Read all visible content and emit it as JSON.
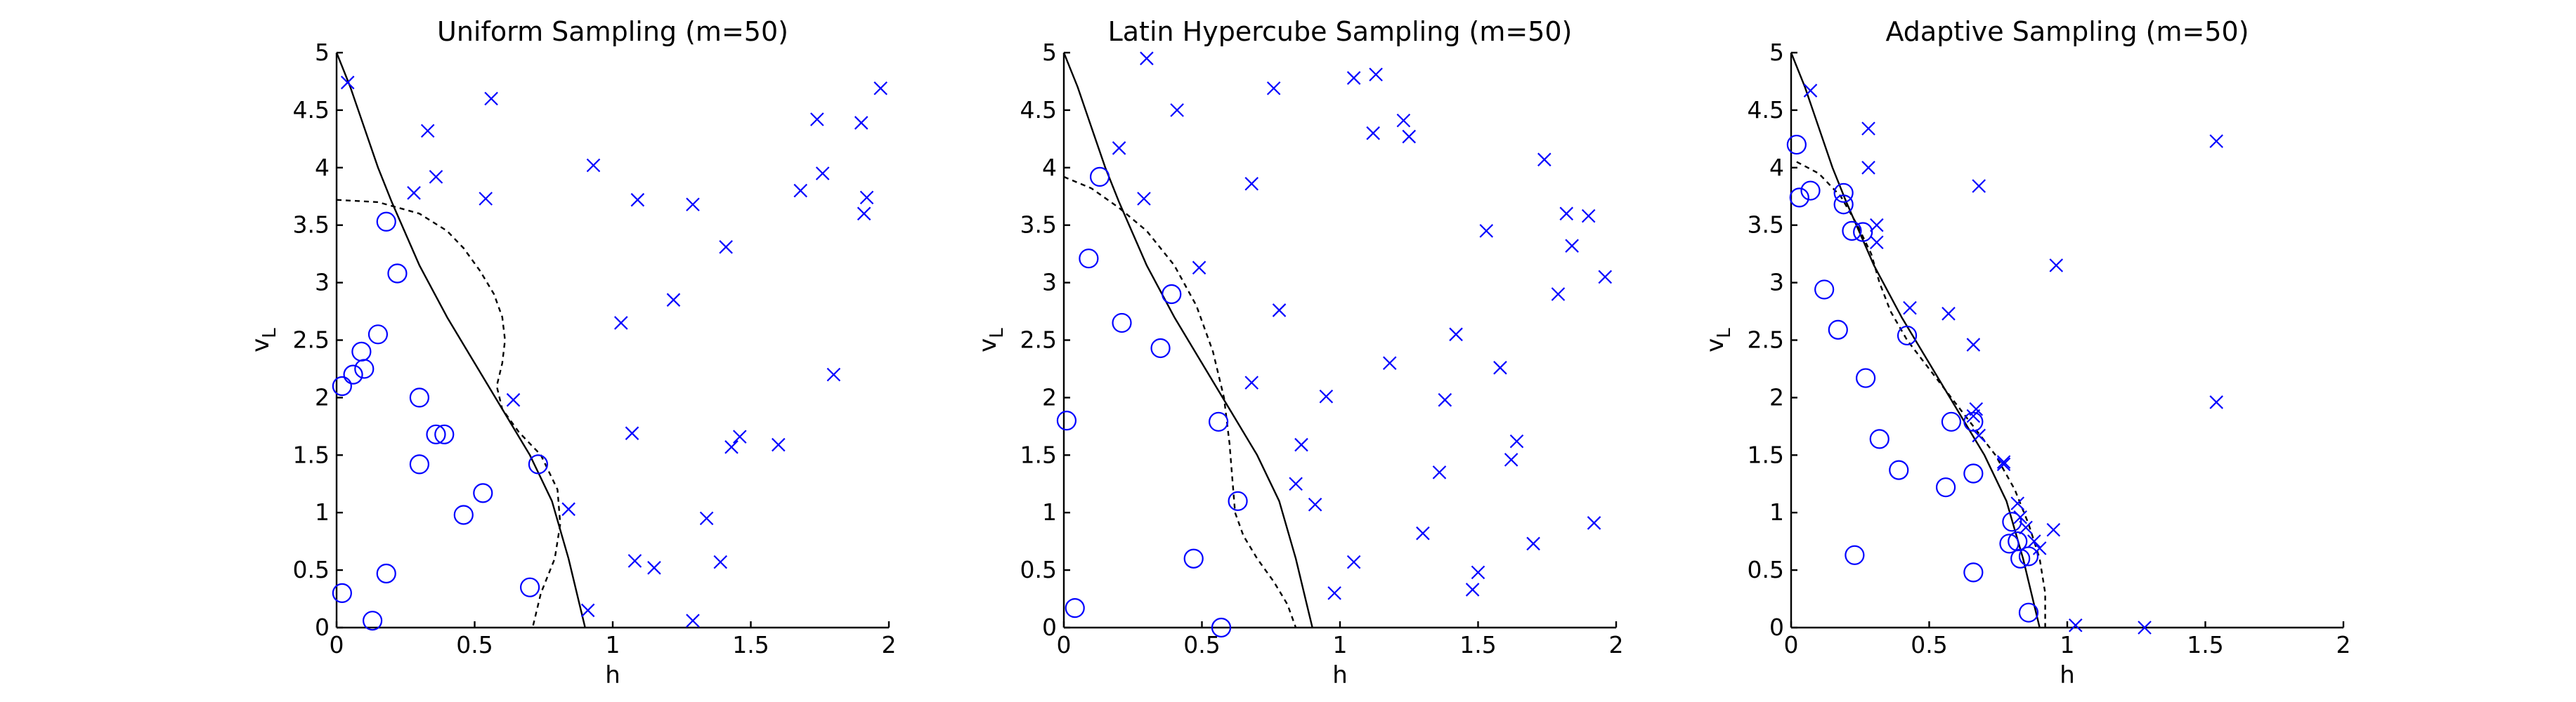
{
  "chart_data": [
    {
      "type": "scatter",
      "title": "Uniform Sampling (m=50)",
      "xlabel": "h",
      "ylabel": "v",
      "ylabel_sub": "L",
      "xlim": [
        0,
        2
      ],
      "ylim": [
        0,
        5
      ],
      "xticks": [
        "0",
        "0.5",
        "1",
        "1.5",
        "2"
      ],
      "yticks": [
        "0",
        "0.5",
        "1",
        "1.5",
        "2",
        "2.5",
        "3",
        "3.5",
        "4",
        "4.5",
        "5"
      ],
      "grid": false,
      "marker_color": "#0000ff",
      "circles": [
        [
          0.18,
          3.53
        ],
        [
          0.22,
          3.08
        ],
        [
          0.15,
          2.55
        ],
        [
          0.09,
          2.4
        ],
        [
          0.1,
          2.25
        ],
        [
          0.06,
          2.2
        ],
        [
          0.02,
          2.1
        ],
        [
          0.3,
          2.0
        ],
        [
          0.36,
          1.68
        ],
        [
          0.39,
          1.68
        ],
        [
          0.3,
          1.42
        ],
        [
          0.73,
          1.42
        ],
        [
          0.53,
          1.17
        ],
        [
          0.46,
          0.98
        ],
        [
          0.02,
          0.3
        ],
        [
          0.18,
          0.47
        ],
        [
          0.7,
          0.35
        ],
        [
          0.13,
          0.06
        ]
      ],
      "crosses": [
        [
          0.04,
          4.74
        ],
        [
          0.56,
          4.6
        ],
        [
          0.33,
          4.32
        ],
        [
          0.36,
          3.92
        ],
        [
          0.28,
          3.78
        ],
        [
          0.54,
          3.73
        ],
        [
          0.93,
          4.02
        ],
        [
          1.09,
          3.72
        ],
        [
          1.29,
          3.68
        ],
        [
          1.41,
          3.31
        ],
        [
          1.74,
          4.42
        ],
        [
          1.76,
          3.95
        ],
        [
          1.97,
          4.69
        ],
        [
          1.9,
          4.39
        ],
        [
          1.68,
          3.8
        ],
        [
          1.92,
          3.74
        ],
        [
          1.91,
          3.6
        ],
        [
          1.03,
          2.65
        ],
        [
          1.22,
          2.85
        ],
        [
          1.8,
          2.2
        ],
        [
          0.64,
          1.98
        ],
        [
          1.07,
          1.69
        ],
        [
          1.46,
          1.66
        ],
        [
          1.43,
          1.57
        ],
        [
          1.6,
          1.59
        ],
        [
          0.84,
          1.03
        ],
        [
          1.34,
          0.95
        ],
        [
          1.08,
          0.58
        ],
        [
          1.15,
          0.52
        ],
        [
          1.39,
          0.57
        ],
        [
          1.29,
          0.06
        ],
        [
          0.91,
          0.15
        ]
      ],
      "series": [
        {
          "style": "solid",
          "x": [
            0.0,
            0.05,
            0.1,
            0.15,
            0.2,
            0.3,
            0.4,
            0.5,
            0.6,
            0.7,
            0.78,
            0.84,
            0.88,
            0.9
          ],
          "y": [
            5.0,
            4.7,
            4.35,
            4.0,
            3.7,
            3.15,
            2.7,
            2.3,
            1.9,
            1.5,
            1.1,
            0.6,
            0.2,
            0.0
          ]
        },
        {
          "style": "dashed",
          "x": [
            0.0,
            0.15,
            0.3,
            0.4,
            0.46,
            0.52,
            0.57,
            0.6,
            0.61,
            0.6,
            0.58,
            0.6,
            0.66,
            0.74,
            0.8,
            0.81,
            0.79,
            0.74,
            0.71
          ],
          "y": [
            3.72,
            3.7,
            3.6,
            3.45,
            3.3,
            3.1,
            2.9,
            2.7,
            2.5,
            2.3,
            2.1,
            1.9,
            1.7,
            1.5,
            1.2,
            0.9,
            0.6,
            0.3,
            0.0
          ]
        }
      ]
    },
    {
      "type": "scatter",
      "title": "Latin Hypercube Sampling (m=50)",
      "xlabel": "h",
      "ylabel": "v",
      "ylabel_sub": "L",
      "xlim": [
        0,
        2
      ],
      "ylim": [
        0,
        5
      ],
      "xticks": [
        "0",
        "0.5",
        "1",
        "1.5",
        "2"
      ],
      "yticks": [
        "0",
        "0.5",
        "1",
        "1.5",
        "2",
        "2.5",
        "3",
        "3.5",
        "4",
        "4.5",
        "5"
      ],
      "grid": false,
      "marker_color": "#0000ff",
      "circles": [
        [
          0.13,
          3.92
        ],
        [
          0.09,
          3.21
        ],
        [
          0.39,
          2.9
        ],
        [
          0.21,
          2.65
        ],
        [
          0.35,
          2.43
        ],
        [
          0.56,
          1.79
        ],
        [
          0.01,
          1.8
        ],
        [
          0.63,
          1.1
        ],
        [
          0.47,
          0.6
        ],
        [
          0.04,
          0.17
        ],
        [
          0.57,
          0.0
        ]
      ],
      "crosses": [
        [
          0.3,
          4.95
        ],
        [
          0.41,
          4.5
        ],
        [
          0.2,
          4.17
        ],
        [
          0.29,
          3.73
        ],
        [
          0.68,
          3.86
        ],
        [
          0.76,
          4.69
        ],
        [
          1.05,
          4.78
        ],
        [
          1.13,
          4.81
        ],
        [
          1.12,
          4.3
        ],
        [
          1.23,
          4.41
        ],
        [
          1.25,
          4.27
        ],
        [
          1.74,
          4.07
        ],
        [
          1.53,
          3.45
        ],
        [
          1.82,
          3.6
        ],
        [
          1.9,
          3.58
        ],
        [
          1.84,
          3.32
        ],
        [
          1.96,
          3.05
        ],
        [
          1.79,
          2.9
        ],
        [
          0.49,
          3.13
        ],
        [
          0.78,
          2.76
        ],
        [
          0.68,
          2.13
        ],
        [
          0.95,
          2.01
        ],
        [
          1.18,
          2.3
        ],
        [
          1.42,
          2.55
        ],
        [
          1.38,
          1.98
        ],
        [
          1.58,
          2.26
        ],
        [
          0.86,
          1.59
        ],
        [
          0.84,
          1.25
        ],
        [
          0.91,
          1.07
        ],
        [
          1.36,
          1.35
        ],
        [
          1.64,
          1.62
        ],
        [
          1.62,
          1.46
        ],
        [
          1.3,
          0.82
        ],
        [
          1.7,
          0.73
        ],
        [
          1.92,
          0.91
        ],
        [
          1.05,
          0.57
        ],
        [
          0.98,
          0.3
        ],
        [
          1.5,
          0.48
        ],
        [
          1.48,
          0.33
        ]
      ],
      "series": [
        {
          "style": "solid",
          "x": [
            0.0,
            0.05,
            0.1,
            0.15,
            0.2,
            0.3,
            0.4,
            0.5,
            0.6,
            0.7,
            0.78,
            0.84,
            0.88,
            0.9
          ],
          "y": [
            5.0,
            4.7,
            4.35,
            4.0,
            3.7,
            3.15,
            2.7,
            2.3,
            1.9,
            1.5,
            1.1,
            0.6,
            0.2,
            0.0
          ]
        },
        {
          "style": "dashed",
          "x": [
            0.0,
            0.1,
            0.2,
            0.3,
            0.4,
            0.48,
            0.54,
            0.58,
            0.6,
            0.61,
            0.62,
            0.65,
            0.7,
            0.76,
            0.81,
            0.84
          ],
          "y": [
            3.92,
            3.82,
            3.65,
            3.45,
            3.15,
            2.8,
            2.4,
            2.0,
            1.6,
            1.3,
            1.0,
            0.8,
            0.6,
            0.4,
            0.2,
            0.0
          ]
        }
      ]
    },
    {
      "type": "scatter",
      "title": "Adaptive Sampling (m=50)",
      "xlabel": "h",
      "ylabel": "v",
      "ylabel_sub": "L",
      "xlim": [
        0,
        2
      ],
      "ylim": [
        0,
        5
      ],
      "xticks": [
        "0",
        "0.5",
        "1",
        "1.5",
        "2"
      ],
      "yticks": [
        "0",
        "0.5",
        "1",
        "1.5",
        "2",
        "2.5",
        "3",
        "3.5",
        "4",
        "4.5",
        "5"
      ],
      "grid": false,
      "marker_color": "#0000ff",
      "circles": [
        [
          0.02,
          4.2
        ],
        [
          0.03,
          3.74
        ],
        [
          0.07,
          3.8
        ],
        [
          0.19,
          3.78
        ],
        [
          0.19,
          3.68
        ],
        [
          0.22,
          3.45
        ],
        [
          0.26,
          3.44
        ],
        [
          0.12,
          2.94
        ],
        [
          0.17,
          2.59
        ],
        [
          0.42,
          2.54
        ],
        [
          0.27,
          2.17
        ],
        [
          0.66,
          1.79
        ],
        [
          0.58,
          1.79
        ],
        [
          0.32,
          1.64
        ],
        [
          0.39,
          1.37
        ],
        [
          0.56,
          1.22
        ],
        [
          0.66,
          1.34
        ],
        [
          0.8,
          0.92
        ],
        [
          0.82,
          0.75
        ],
        [
          0.79,
          0.73
        ],
        [
          0.83,
          0.6
        ],
        [
          0.86,
          0.62
        ],
        [
          0.23,
          0.63
        ],
        [
          0.66,
          0.48
        ],
        [
          0.86,
          0.13
        ]
      ],
      "crosses": [
        [
          0.07,
          4.67
        ],
        [
          0.28,
          4.34
        ],
        [
          0.28,
          4.0
        ],
        [
          0.68,
          3.84
        ],
        [
          0.31,
          3.5
        ],
        [
          0.31,
          3.35
        ],
        [
          0.96,
          3.15
        ],
        [
          1.54,
          4.23
        ],
        [
          0.43,
          2.78
        ],
        [
          0.57,
          2.73
        ],
        [
          0.66,
          2.46
        ],
        [
          0.67,
          1.9
        ],
        [
          0.66,
          1.84
        ],
        [
          0.68,
          1.67
        ],
        [
          0.77,
          1.44
        ],
        [
          0.77,
          1.42
        ],
        [
          0.82,
          1.08
        ],
        [
          0.83,
          0.96
        ],
        [
          0.85,
          0.87
        ],
        [
          0.88,
          0.75
        ],
        [
          0.9,
          0.69
        ],
        [
          0.95,
          0.85
        ],
        [
          1.03,
          0.02
        ],
        [
          1.28,
          0.0
        ],
        [
          1.54,
          1.96
        ]
      ],
      "series": [
        {
          "style": "solid",
          "x": [
            0.0,
            0.05,
            0.1,
            0.15,
            0.2,
            0.3,
            0.4,
            0.5,
            0.6,
            0.7,
            0.78,
            0.84,
            0.88,
            0.9
          ],
          "y": [
            5.0,
            4.7,
            4.35,
            4.0,
            3.7,
            3.15,
            2.7,
            2.3,
            1.9,
            1.5,
            1.1,
            0.6,
            0.2,
            0.0
          ]
        },
        {
          "style": "dashed",
          "x": [
            0.02,
            0.1,
            0.18,
            0.24,
            0.29,
            0.32,
            0.36,
            0.42,
            0.5,
            0.58,
            0.66,
            0.74,
            0.81,
            0.86,
            0.9,
            0.92,
            0.92
          ],
          "y": [
            4.05,
            3.95,
            3.75,
            3.5,
            3.25,
            3.0,
            2.75,
            2.5,
            2.25,
            2.0,
            1.75,
            1.5,
            1.2,
            0.9,
            0.6,
            0.3,
            0.0
          ]
        }
      ]
    }
  ]
}
